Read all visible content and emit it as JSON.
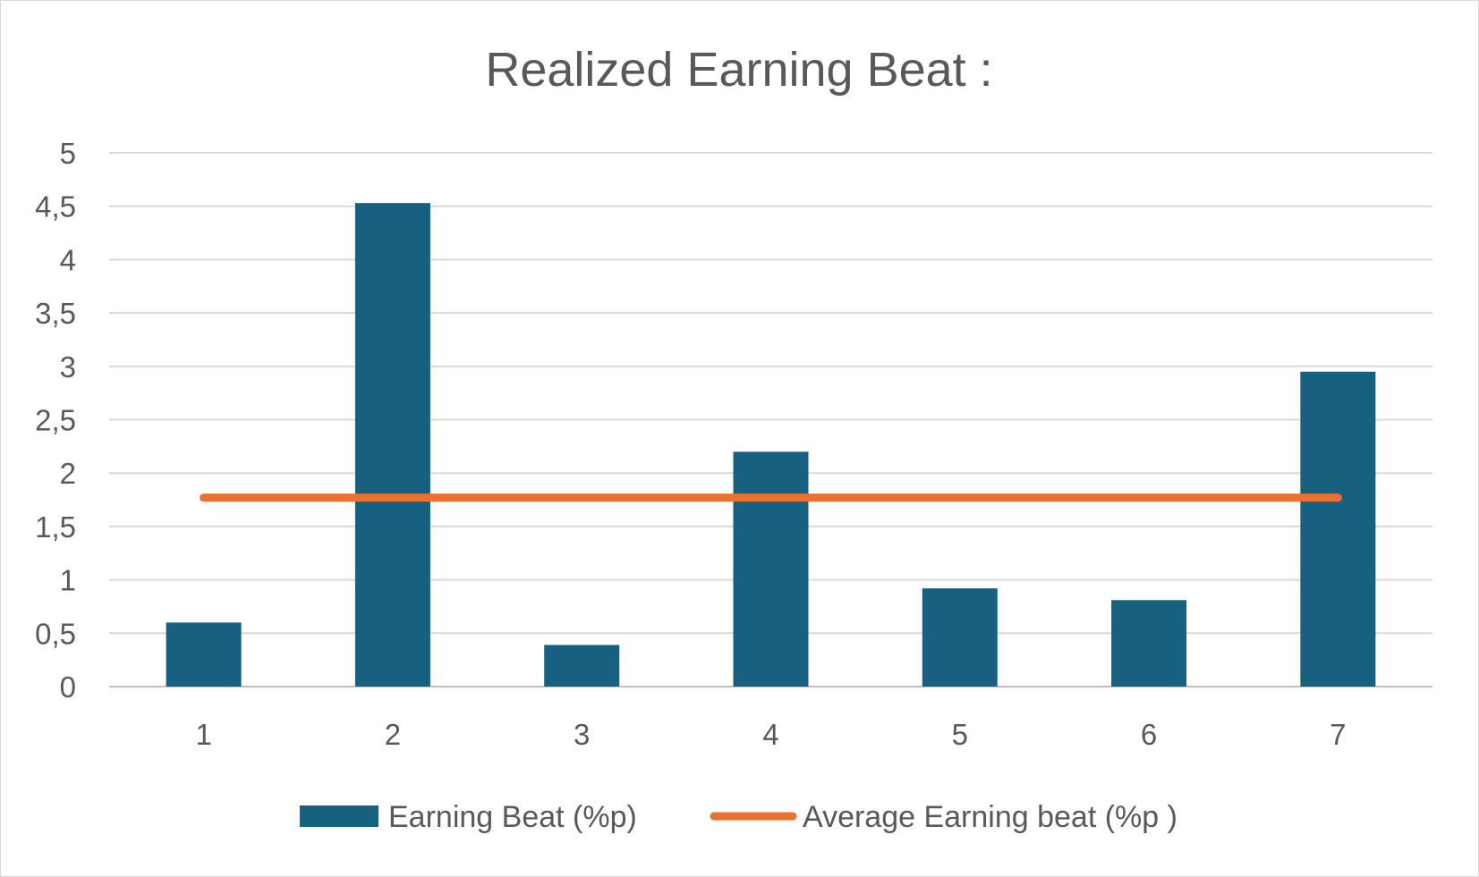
{
  "chart_data": {
    "type": "bar",
    "title": "Realized Earning Beat :",
    "categories": [
      "1",
      "2",
      "3",
      "4",
      "5",
      "6",
      "7"
    ],
    "series": [
      {
        "name": "Earning Beat (%p)",
        "kind": "bar",
        "color": "#17607f",
        "values": [
          0.6,
          4.53,
          0.39,
          2.2,
          0.92,
          0.81,
          2.95
        ]
      },
      {
        "name": "Average Earning beat (%p )",
        "kind": "line",
        "color": "#e97132",
        "values": [
          1.77,
          1.77,
          1.77,
          1.77,
          1.77,
          1.77,
          1.77
        ]
      }
    ],
    "ylim": [
      0,
      5
    ],
    "yticks": [
      "0",
      "0,5",
      "1",
      "1,5",
      "2",
      "2,5",
      "3",
      "3,5",
      "4",
      "4,5",
      "5"
    ],
    "xlabel": "",
    "ylabel": "",
    "grid": true,
    "legend": "bottom"
  }
}
